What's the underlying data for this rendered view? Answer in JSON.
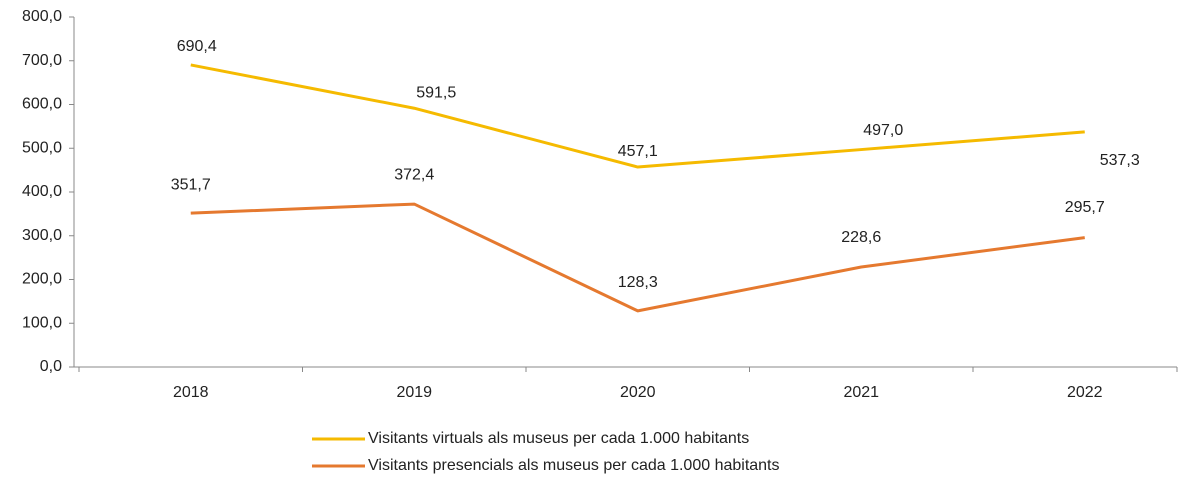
{
  "chart_data": {
    "type": "line",
    "categories": [
      "2018",
      "2019",
      "2020",
      "2021",
      "2022"
    ],
    "series": [
      {
        "name": "Visitants virtuals als museus per cada 1.000 habitants",
        "color": "#F5BA00",
        "values": [
          690.4,
          591.5,
          457.1,
          497.0,
          537.3
        ],
        "value_labels": [
          "690,4",
          "591,5",
          "457,1",
          "497,0",
          "537,3"
        ]
      },
      {
        "name": "Visitants presencials als museus per cada 1.000 habitants",
        "color": "#E5792F",
        "values": [
          351.7,
          372.4,
          128.3,
          228.6,
          295.7
        ],
        "value_labels": [
          "351,7",
          "372,4",
          "128,3",
          "228,6",
          "295,7"
        ]
      }
    ],
    "ylim": [
      0,
      800
    ],
    "yticks": [
      {
        "value": 0,
        "label": "0,0"
      },
      {
        "value": 100,
        "label": "100,0"
      },
      {
        "value": 200,
        "label": "200,0"
      },
      {
        "value": 300,
        "label": "300,0"
      },
      {
        "value": 400,
        "label": "400,0"
      },
      {
        "value": 500,
        "label": "500,0"
      },
      {
        "value": 600,
        "label": "600,0"
      },
      {
        "value": 700,
        "label": "700,0"
      },
      {
        "value": 800,
        "label": "800,0"
      }
    ],
    "grid": false,
    "legend": "bottom"
  }
}
